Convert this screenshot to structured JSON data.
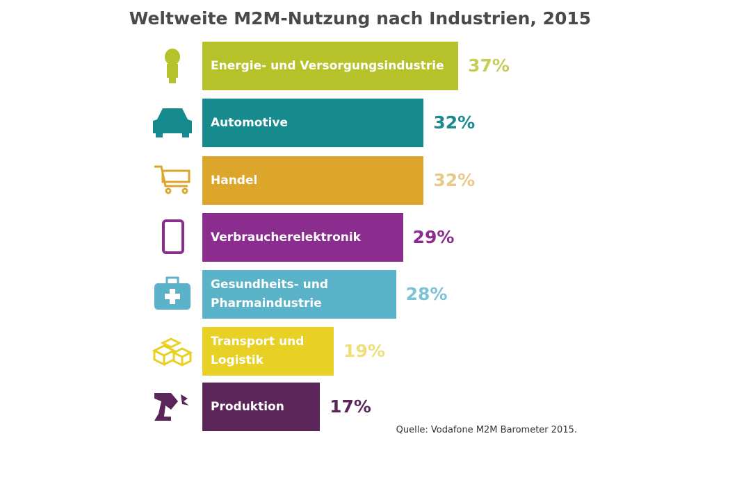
{
  "chart_data": {
    "type": "bar",
    "orientation": "horizontal",
    "title": "Weltweite M2M-Nutzung nach Industrien, 2015",
    "categories": [
      "Energie- und Versorgungsindustrie",
      "Automotive",
      "Handel",
      "Verbraucherelektronik",
      "Gesundheits- und Pharmaindustrie",
      "Transport und Logistik",
      "Produktion"
    ],
    "values": [
      37,
      32,
      32,
      29,
      28,
      19,
      17
    ],
    "value_labels": [
      "37%",
      "32%",
      "32%",
      "29%",
      "28%",
      "19%",
      "17%"
    ],
    "colors": [
      "#b5c22a",
      "#168a8d",
      "#dca62a",
      "#8b2d8f",
      "#5ab3c8",
      "#e9d024",
      "#5a2659"
    ],
    "label_colors": [
      "#c6cd56",
      "#1b8a8e",
      "#e8c98a",
      "#8b2d8f",
      "#7cc3d4",
      "#ede07a",
      "#5a2659"
    ],
    "source": "Quelle: Vodafone M2M Barometer 2015."
  }
}
